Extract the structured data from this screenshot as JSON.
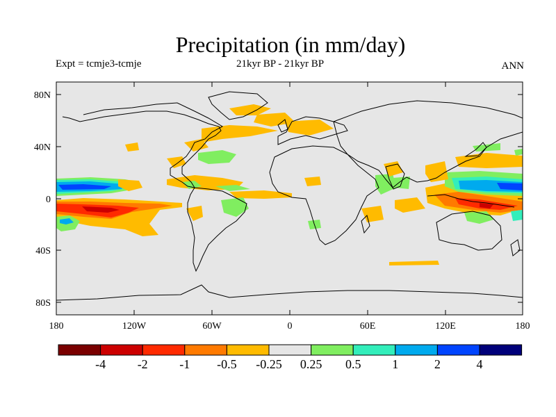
{
  "header": {
    "title": "Precipitation (in mm/day)",
    "experiment": "Expt = tcmje3-tcmje",
    "period": "21kyr BP - 21kyr BP",
    "season": "ANN"
  },
  "map": {
    "background_color": "#e6e6e6",
    "lat_ticks": [
      "80N",
      "40N",
      "0",
      "40S",
      "80S"
    ],
    "lon_ticks": [
      "180",
      "120W",
      "60W",
      "0",
      "60E",
      "120E",
      "180"
    ]
  },
  "colorbar": {
    "labels": [
      "-4",
      "-2",
      "-1",
      "-0.5",
      "-0.25",
      "0.25",
      "0.5",
      "1",
      "2",
      "4"
    ],
    "colors": [
      "#7a0000",
      "#cc0000",
      "#ff2a00",
      "#ff7a00",
      "#ffbb00",
      "#e6e6e6",
      "#80ee60",
      "#33eebb",
      "#00aaee",
      "#0044ff",
      "#00007a"
    ]
  }
}
